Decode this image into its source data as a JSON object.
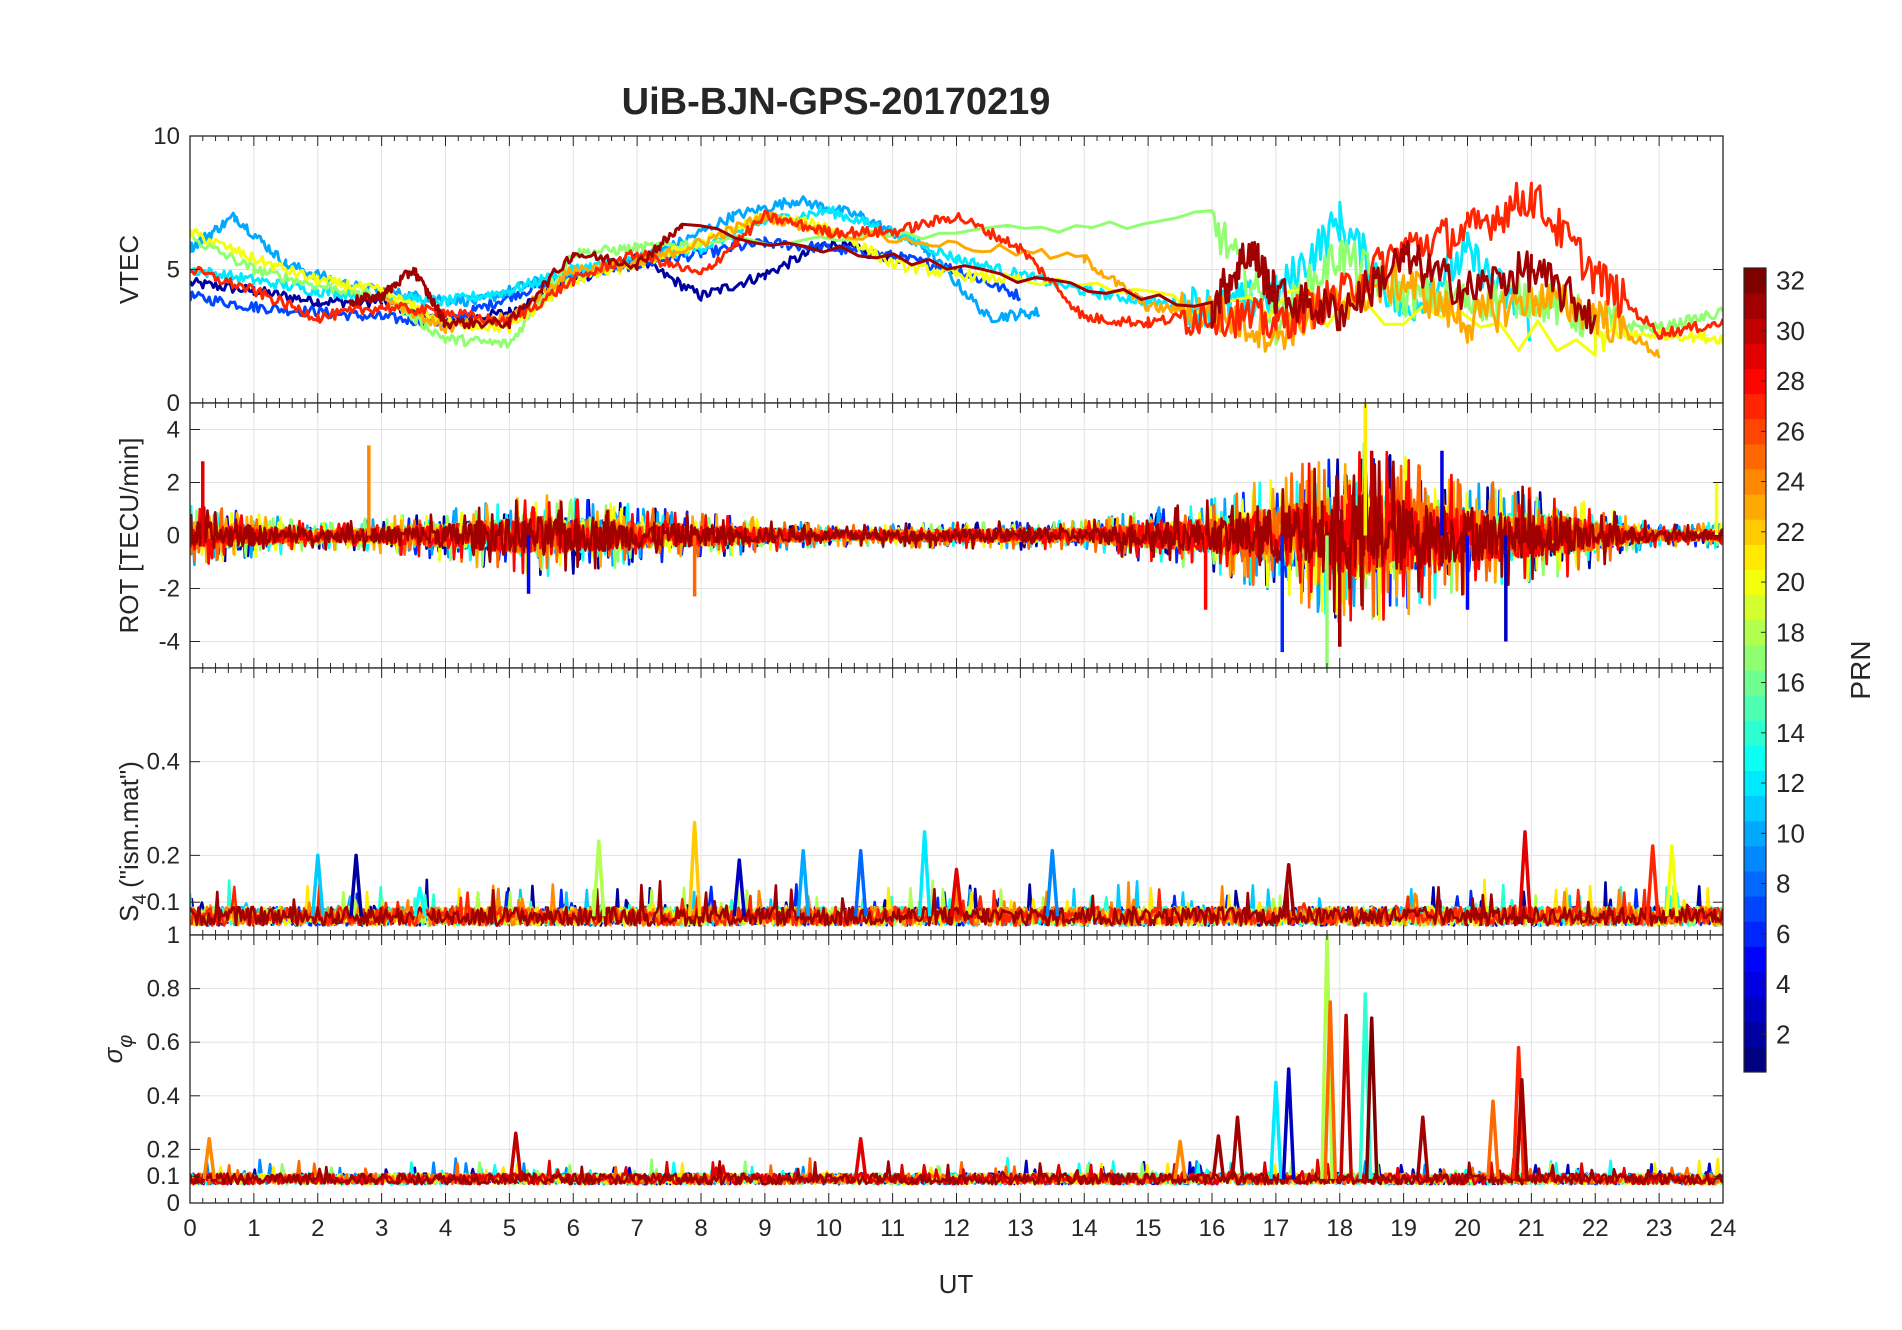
{
  "figure": {
    "title": "UiB-BJN-GPS-20170219",
    "xlabel": "UT",
    "colorbar_label": "PRN"
  },
  "chart_data": [
    {
      "type": "line",
      "panel": "vtec",
      "ylabel": "VTEC",
      "xlim": [
        0,
        24
      ],
      "ylim": [
        0,
        10
      ],
      "yticks": [
        0,
        5,
        10
      ],
      "grid": true,
      "series": [
        {
          "prn": 2,
          "x": [
            0,
            1,
            2,
            3,
            4,
            5,
            6,
            7,
            8,
            9,
            10,
            11
          ],
          "y": [
            4.5,
            4.2,
            3.8,
            3.8,
            3.0,
            3.4,
            4.6,
            5.4,
            4.0,
            4.8,
            6.0,
            5.4
          ]
        },
        {
          "prn": 7,
          "x": [
            0,
            1,
            2,
            3,
            4,
            5,
            6,
            7,
            8,
            9,
            10,
            11,
            12,
            13
          ],
          "y": [
            4.0,
            3.6,
            3.4,
            3.2,
            3.0,
            4.0,
            4.8,
            5.2,
            5.6,
            6.0,
            5.8,
            5.5,
            5.0,
            4.0
          ]
        },
        {
          "prn": 10,
          "x": [
            0,
            0.7,
            1.5,
            2.5,
            3.5,
            4.5,
            5.5,
            6.5,
            7.5,
            8.5,
            9.5,
            10.5,
            11.5,
            12.5,
            13.3
          ],
          "y": [
            5.8,
            7.0,
            5.2,
            4.4,
            4.0,
            3.8,
            4.6,
            5.0,
            5.8,
            7.0,
            7.6,
            7.0,
            5.8,
            3.2,
            3.4
          ]
        },
        {
          "prn": 12,
          "x": [
            0,
            1,
            2,
            3,
            4,
            5,
            6,
            7,
            8,
            9,
            10,
            11,
            12,
            13,
            14,
            15,
            16,
            17,
            18,
            19,
            20,
            21
          ],
          "y": [
            5.0,
            4.6,
            4.2,
            4.0,
            3.8,
            4.2,
            5.0,
            5.4,
            5.8,
            6.8,
            7.2,
            6.4,
            5.4,
            4.8,
            4.2,
            3.8,
            3.6,
            4.0,
            6.8,
            3.4,
            5.6,
            3.0
          ]
        },
        {
          "prn": 17,
          "x": [
            0,
            1,
            2,
            3,
            4,
            5,
            6,
            7,
            8,
            16,
            17,
            18,
            19,
            20,
            21,
            22,
            23,
            24
          ],
          "y": [
            6.2,
            5.0,
            4.4,
            4.0,
            2.4,
            2.2,
            5.6,
            5.8,
            6.0,
            6.8,
            3.0,
            5.6,
            4.0,
            3.8,
            4.0,
            3.0,
            2.8,
            3.4
          ]
        },
        {
          "prn": 20,
          "x": [
            0,
            1,
            2,
            3,
            4,
            5,
            6,
            7,
            8,
            9,
            10,
            11,
            12,
            13,
            22,
            23,
            24
          ],
          "y": [
            6.4,
            5.4,
            4.6,
            4.2,
            3.0,
            2.8,
            4.6,
            5.2,
            6.0,
            7.0,
            6.6,
            5.2,
            4.8,
            4.6,
            2.4,
            2.6,
            2.4
          ]
        },
        {
          "prn": 23,
          "x": [
            3,
            4,
            5,
            6,
            7,
            8,
            9,
            10,
            14,
            15,
            16,
            17,
            18,
            19,
            20,
            21,
            22,
            23
          ],
          "y": [
            4.0,
            2.8,
            3.2,
            5.0,
            5.2,
            6.0,
            7.0,
            6.4,
            5.4,
            3.6,
            3.4,
            2.6,
            3.8,
            4.6,
            3.0,
            4.0,
            3.4,
            1.8
          ]
        },
        {
          "prn": 27,
          "x": [
            0,
            1,
            2,
            3,
            4,
            5,
            6,
            7,
            8,
            9,
            10,
            11,
            12,
            13,
            14,
            15,
            16,
            17,
            18,
            19,
            20,
            21,
            22,
            23,
            24
          ],
          "y": [
            5.0,
            4.2,
            3.2,
            3.6,
            3.4,
            3.0,
            4.6,
            5.6,
            4.8,
            7.0,
            6.4,
            6.4,
            7.0,
            5.8,
            3.2,
            3.0,
            3.4,
            3.0,
            4.0,
            5.8,
            6.4,
            7.8,
            4.8,
            2.6,
            3.0
          ]
        },
        {
          "prn": 31,
          "x": [
            2.5,
            3,
            3.5,
            4,
            5,
            6,
            7,
            7.7,
            16,
            16.6,
            17,
            18,
            19,
            20,
            21,
            22
          ],
          "y": [
            3.8,
            4.0,
            5.0,
            3.0,
            3.0,
            5.6,
            5.2,
            6.6,
            3.6,
            5.8,
            4.0,
            3.4,
            5.4,
            4.2,
            5.0,
            3.2
          ]
        }
      ]
    },
    {
      "type": "line",
      "panel": "rot",
      "ylabel": "ROT [TECU/min]",
      "xlim": [
        0,
        24
      ],
      "ylim": [
        -5,
        5
      ],
      "yticks": [
        -4,
        -2,
        0,
        2,
        4
      ],
      "grid": true,
      "noise_envelope": [
        {
          "x": 0,
          "amp": 1.2
        },
        {
          "x": 2,
          "amp": 0.5
        },
        {
          "x": 3.5,
          "amp": 0.8
        },
        {
          "x": 5.5,
          "amp": 1.6
        },
        {
          "x": 7.5,
          "amp": 1.0
        },
        {
          "x": 10,
          "amp": 0.4
        },
        {
          "x": 12,
          "amp": 0.5
        },
        {
          "x": 14,
          "amp": 0.6
        },
        {
          "x": 16,
          "amp": 1.4
        },
        {
          "x": 17.5,
          "amp": 2.8
        },
        {
          "x": 18.3,
          "amp": 3.6
        },
        {
          "x": 20,
          "amp": 2.2
        },
        {
          "x": 21.5,
          "amp": 1.6
        },
        {
          "x": 23,
          "amp": 0.4
        },
        {
          "x": 24,
          "amp": 0.5
        }
      ],
      "spikes": [
        {
          "x": 0.2,
          "y": 2.8,
          "prn": 29
        },
        {
          "x": 2.8,
          "y": 3.4,
          "prn": 24
        },
        {
          "x": 5.3,
          "y": -2.2,
          "prn": 5
        },
        {
          "x": 7.9,
          "y": -2.3,
          "prn": 25
        },
        {
          "x": 15.9,
          "y": -2.8,
          "prn": 28
        },
        {
          "x": 17.1,
          "y": -4.4,
          "prn": 6
        },
        {
          "x": 17.8,
          "y": -5.0,
          "prn": 17
        },
        {
          "x": 18.0,
          "y": -4.2,
          "prn": 31
        },
        {
          "x": 18.4,
          "y": 5.0,
          "prn": 21
        },
        {
          "x": 18.5,
          "y": 3.2,
          "prn": 30
        },
        {
          "x": 19.6,
          "y": 3.2,
          "prn": 4
        },
        {
          "x": 20.0,
          "y": -2.8,
          "prn": 5
        },
        {
          "x": 20.6,
          "y": -4.0,
          "prn": 3
        },
        {
          "x": 23.9,
          "y": 2.0,
          "prn": 20
        }
      ]
    },
    {
      "type": "line",
      "panel": "s4",
      "ylabel": "S4 (\"ism.mat\")",
      "xlim": [
        0,
        24
      ],
      "ylim": [
        0.03,
        0.6
      ],
      "yticks": [
        0.1,
        0.2,
        0.4
      ],
      "grid": true,
      "baseline": 0.07,
      "spikes": [
        {
          "x": 2.0,
          "y": 0.2,
          "prn": 11
        },
        {
          "x": 2.6,
          "y": 0.2,
          "prn": 2
        },
        {
          "x": 3.6,
          "y": 0.13,
          "prn": 13
        },
        {
          "x": 6.4,
          "y": 0.23,
          "prn": 18
        },
        {
          "x": 7.9,
          "y": 0.27,
          "prn": 22
        },
        {
          "x": 8.6,
          "y": 0.19,
          "prn": 3
        },
        {
          "x": 9.6,
          "y": 0.21,
          "prn": 10
        },
        {
          "x": 10.5,
          "y": 0.21,
          "prn": 8
        },
        {
          "x": 11.5,
          "y": 0.25,
          "prn": 12
        },
        {
          "x": 12.0,
          "y": 0.17,
          "prn": 29
        },
        {
          "x": 13.5,
          "y": 0.21,
          "prn": 9
        },
        {
          "x": 17.2,
          "y": 0.18,
          "prn": 31
        },
        {
          "x": 20.9,
          "y": 0.25,
          "prn": 29
        },
        {
          "x": 22.9,
          "y": 0.22,
          "prn": 27
        },
        {
          "x": 23.2,
          "y": 0.22,
          "prn": 20
        }
      ]
    },
    {
      "type": "line",
      "panel": "sigma_phi",
      "ylabel": "σφ",
      "xlim": [
        0,
        24
      ],
      "ylim": [
        0,
        1
      ],
      "yticks": [
        0,
        0.1,
        0.2,
        0.4,
        0.6,
        0.8,
        1
      ],
      "grid": true,
      "baseline": 0.09,
      "spikes": [
        {
          "x": 0.3,
          "y": 0.24,
          "prn": 24
        },
        {
          "x": 5.1,
          "y": 0.26,
          "prn": 30
        },
        {
          "x": 10.5,
          "y": 0.24,
          "prn": 29
        },
        {
          "x": 15.5,
          "y": 0.23,
          "prn": 24
        },
        {
          "x": 16.1,
          "y": 0.25,
          "prn": 31
        },
        {
          "x": 16.4,
          "y": 0.32,
          "prn": 31
        },
        {
          "x": 17.0,
          "y": 0.45,
          "prn": 12
        },
        {
          "x": 17.2,
          "y": 0.5,
          "prn": 3
        },
        {
          "x": 17.8,
          "y": 1.0,
          "prn": 18
        },
        {
          "x": 17.85,
          "y": 0.75,
          "prn": 25
        },
        {
          "x": 18.1,
          "y": 0.7,
          "prn": 30
        },
        {
          "x": 18.4,
          "y": 0.78,
          "prn": 14
        },
        {
          "x": 18.5,
          "y": 0.69,
          "prn": 32
        },
        {
          "x": 19.3,
          "y": 0.32,
          "prn": 31
        },
        {
          "x": 20.4,
          "y": 0.38,
          "prn": 25
        },
        {
          "x": 20.8,
          "y": 0.58,
          "prn": 27
        },
        {
          "x": 20.85,
          "y": 0.46,
          "prn": 31
        }
      ]
    },
    {
      "type": "heatmap",
      "panel": "colorbar",
      "label": "PRN",
      "range": [
        1,
        32
      ],
      "ticks": [
        2,
        4,
        6,
        8,
        10,
        12,
        14,
        16,
        18,
        20,
        22,
        24,
        26,
        28,
        30,
        32
      ],
      "colormap": "jet"
    }
  ],
  "x_ticks": [
    0,
    1,
    2,
    3,
    4,
    5,
    6,
    7,
    8,
    9,
    10,
    11,
    12,
    13,
    14,
    15,
    16,
    17,
    18,
    19,
    20,
    21,
    22,
    23,
    24
  ]
}
